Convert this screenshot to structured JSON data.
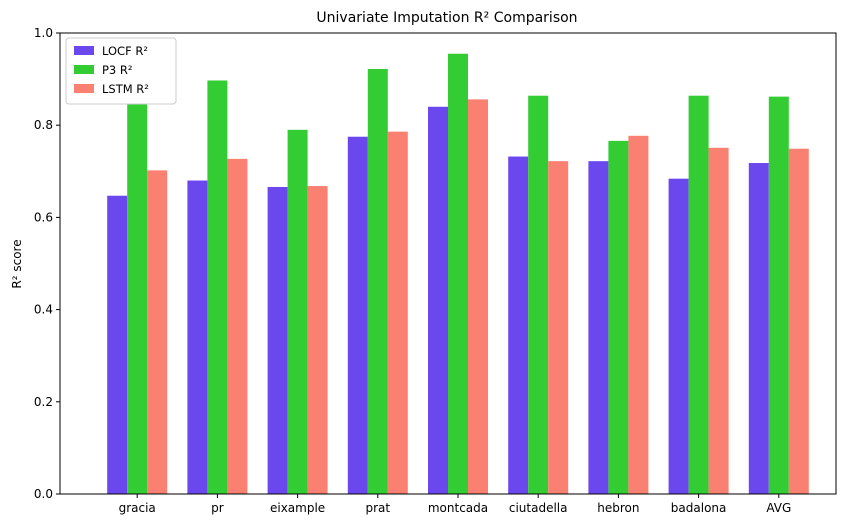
{
  "chart_data": {
    "type": "bar",
    "title": "Univariate Imputation R² Comparison",
    "xlabel": "",
    "ylabel": "R² score",
    "ylim": [
      0,
      1.0
    ],
    "yticks": [
      "0.0",
      "0.2",
      "0.4",
      "0.6",
      "0.8",
      "1.0"
    ],
    "grid": false,
    "legend_position": "top-left",
    "categories": [
      "gracia",
      "pr",
      "eixample",
      "prat",
      "montcada",
      "ciutadella",
      "hebron",
      "badalona",
      "AVG"
    ],
    "series": [
      {
        "name": "LOCF R²",
        "color": "#6a48ee",
        "values": [
          0.647,
          0.68,
          0.666,
          0.775,
          0.84,
          0.732,
          0.722,
          0.684,
          0.718
        ]
      },
      {
        "name": "P3 R²",
        "color": "#33cc33",
        "values": [
          0.845,
          0.897,
          0.79,
          0.922,
          0.955,
          0.864,
          0.766,
          0.864,
          0.862
        ]
      },
      {
        "name": "LSTM R²",
        "color": "#fa8072",
        "values": [
          0.702,
          0.727,
          0.668,
          0.786,
          0.856,
          0.722,
          0.777,
          0.751,
          0.749
        ]
      }
    ]
  }
}
